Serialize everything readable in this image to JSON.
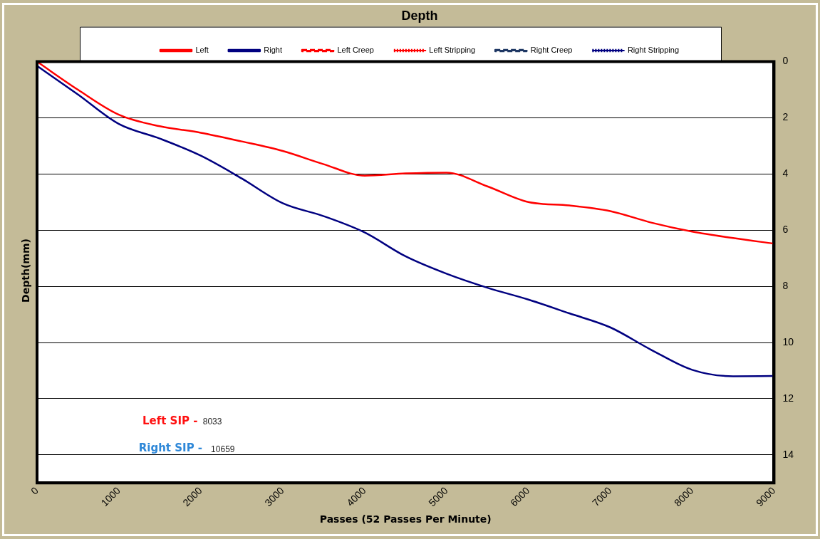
{
  "chart_data": {
    "type": "line",
    "title": "Depth",
    "xlabel": "Passes (52 Passes Per Minute)",
    "ylabel": "Depth(mm)",
    "x": [
      0,
      500,
      1000,
      1500,
      2000,
      2500,
      3000,
      3500,
      4000,
      4500,
      5000,
      5500,
      6000,
      6500,
      7000,
      7500,
      8000,
      8500,
      9000
    ],
    "series": [
      {
        "name": "Left",
        "color": "#ff0000",
        "line_style": "solid",
        "values": [
          0,
          1.0,
          1.89,
          2.3,
          2.53,
          2.84,
          3.18,
          3.65,
          4.06,
          3.98,
          3.95,
          4.44,
          5.0,
          5.12,
          5.32,
          5.73,
          6.05,
          6.28,
          6.48
        ]
      },
      {
        "name": "Right",
        "color": "#000080",
        "line_style": "solid",
        "values": [
          0.15,
          1.17,
          2.22,
          2.74,
          3.35,
          4.16,
          5.04,
          5.5,
          6.08,
          6.93,
          7.55,
          8.05,
          8.47,
          8.96,
          9.46,
          10.26,
          10.97,
          11.2,
          11.19
        ]
      },
      {
        "name": "Left Creep",
        "color": "#ff0000",
        "line_style": "dashed",
        "values": [
          null,
          null,
          null,
          null,
          null,
          null,
          null,
          null,
          null,
          null,
          null,
          null,
          null,
          null,
          null,
          null,
          null,
          null,
          null
        ]
      },
      {
        "name": "Left Stripping",
        "color": "#ff0000",
        "line_style": "dotted",
        "values": [
          null,
          null,
          null,
          null,
          null,
          null,
          null,
          null,
          null,
          null,
          null,
          null,
          null,
          null,
          null,
          null,
          null,
          null,
          null
        ]
      },
      {
        "name": "Right Creep",
        "color": "#1f3864",
        "line_style": "dashed",
        "values": [
          null,
          null,
          null,
          null,
          null,
          null,
          null,
          null,
          null,
          null,
          null,
          null,
          null,
          null,
          null,
          null,
          null,
          null,
          null
        ]
      },
      {
        "name": "Right Stripping",
        "color": "#000080",
        "line_style": "dotted",
        "values": [
          null,
          null,
          null,
          null,
          null,
          null,
          null,
          null,
          null,
          null,
          null,
          null,
          null,
          null,
          null,
          null,
          null,
          null,
          null
        ]
      }
    ],
    "annotations": [
      "Left SIP -",
      "8033",
      "Right SIP -",
      "10659"
    ],
    "xlim": [
      0,
      9000
    ],
    "xticks": [
      0,
      1000,
      2000,
      3000,
      4000,
      5000,
      6000,
      7000,
      8000,
      9000
    ],
    "ylim": [
      15,
      0
    ],
    "yticks": [
      0,
      2,
      4,
      6,
      8,
      10,
      12,
      14
    ],
    "grid": "y",
    "legend": "top",
    "marker": "none"
  }
}
